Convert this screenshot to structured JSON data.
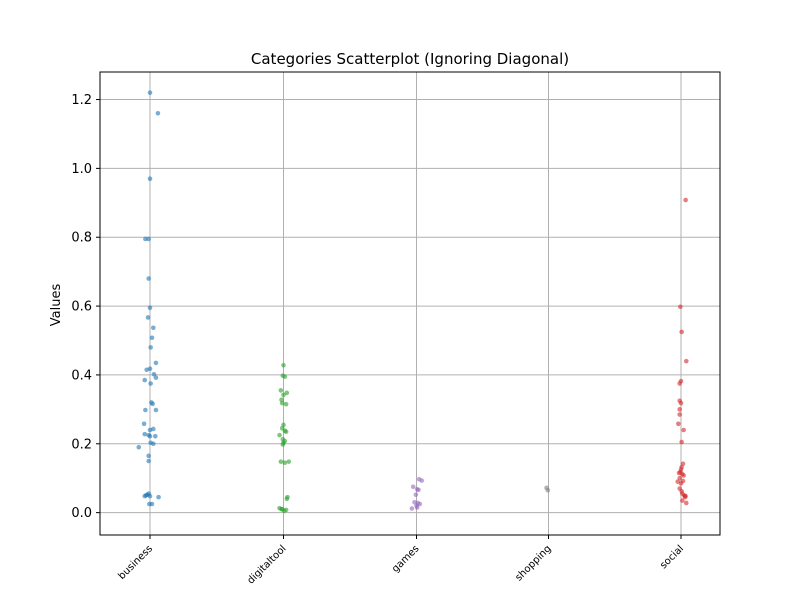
{
  "chart_data": {
    "type": "scatter",
    "title": "Categories Scatterplot (Ignoring Diagonal)",
    "xlabel": "",
    "ylabel": "Values",
    "categories": [
      "business",
      "digitaltool",
      "games",
      "shopping",
      "social"
    ],
    "y_ticks": [
      "0.0",
      "0.2",
      "0.4",
      "0.6",
      "0.8",
      "1.0",
      "1.2"
    ],
    "ylim": [
      -0.065,
      1.28
    ],
    "grid": true,
    "series": [
      {
        "color": "#1f77b4",
        "points": [
          {
            "x": 0.0,
            "y": 1.22
          },
          {
            "x": 0.12,
            "y": 1.16
          },
          {
            "x": 0.0,
            "y": 0.97
          },
          {
            "x": -0.07,
            "y": 0.795
          },
          {
            "x": -0.02,
            "y": 0.795
          },
          {
            "x": -0.02,
            "y": 0.68
          },
          {
            "x": 0.0,
            "y": 0.595
          },
          {
            "x": -0.03,
            "y": 0.567
          },
          {
            "x": 0.05,
            "y": 0.537
          },
          {
            "x": 0.03,
            "y": 0.508
          },
          {
            "x": 0.01,
            "y": 0.48
          },
          {
            "x": 0.09,
            "y": 0.435
          },
          {
            "x": -0.05,
            "y": 0.415
          },
          {
            "x": 0.0,
            "y": 0.418
          },
          {
            "x": 0.06,
            "y": 0.402
          },
          {
            "x": 0.09,
            "y": 0.392
          },
          {
            "x": -0.08,
            "y": 0.385
          },
          {
            "x": 0.01,
            "y": 0.375
          },
          {
            "x": 0.02,
            "y": 0.32
          },
          {
            "x": 0.04,
            "y": 0.316
          },
          {
            "x": -0.07,
            "y": 0.298
          },
          {
            "x": 0.09,
            "y": 0.298
          },
          {
            "x": -0.09,
            "y": 0.258
          },
          {
            "x": 0.05,
            "y": 0.243
          },
          {
            "x": 0.0,
            "y": 0.24
          },
          {
            "x": -0.08,
            "y": 0.228
          },
          {
            "x": -0.02,
            "y": 0.225
          },
          {
            "x": 0.0,
            "y": 0.222
          },
          {
            "x": 0.08,
            "y": 0.222
          },
          {
            "x": 0.01,
            "y": 0.203
          },
          {
            "x": 0.05,
            "y": 0.2
          },
          {
            "x": -0.17,
            "y": 0.19
          },
          {
            "x": -0.02,
            "y": 0.165
          },
          {
            "x": -0.02,
            "y": 0.15
          },
          {
            "x": -0.06,
            "y": 0.05
          },
          {
            "x": -0.04,
            "y": 0.052
          },
          {
            "x": -0.02,
            "y": 0.055
          },
          {
            "x": 0.0,
            "y": 0.048
          },
          {
            "x": 0.13,
            "y": 0.045
          },
          {
            "x": -0.08,
            "y": 0.048
          },
          {
            "x": -0.01,
            "y": 0.025
          },
          {
            "x": 0.03,
            "y": 0.025
          }
        ]
      },
      {
        "color": "#2ca02c",
        "points": [
          {
            "x": 0.0,
            "y": 0.428
          },
          {
            "x": -0.01,
            "y": 0.398
          },
          {
            "x": 0.02,
            "y": 0.395
          },
          {
            "x": -0.04,
            "y": 0.355
          },
          {
            "x": 0.05,
            "y": 0.348
          },
          {
            "x": 0.0,
            "y": 0.342
          },
          {
            "x": -0.03,
            "y": 0.328
          },
          {
            "x": -0.02,
            "y": 0.318
          },
          {
            "x": 0.04,
            "y": 0.315
          },
          {
            "x": -0.02,
            "y": 0.245
          },
          {
            "x": 0.0,
            "y": 0.255
          },
          {
            "x": 0.02,
            "y": 0.238
          },
          {
            "x": 0.04,
            "y": 0.235
          },
          {
            "x": -0.06,
            "y": 0.225
          },
          {
            "x": -0.01,
            "y": 0.213
          },
          {
            "x": 0.02,
            "y": 0.208
          },
          {
            "x": 0.0,
            "y": 0.203
          },
          {
            "x": -0.01,
            "y": 0.198
          },
          {
            "x": -0.04,
            "y": 0.148
          },
          {
            "x": 0.02,
            "y": 0.145
          },
          {
            "x": 0.08,
            "y": 0.148
          },
          {
            "x": 0.06,
            "y": 0.045
          },
          {
            "x": 0.05,
            "y": 0.04
          },
          {
            "x": -0.06,
            "y": 0.013
          },
          {
            "x": -0.03,
            "y": 0.01
          },
          {
            "x": 0.01,
            "y": 0.005
          },
          {
            "x": 0.04,
            "y": 0.008
          },
          {
            "x": -0.02,
            "y": 0.01
          }
        ]
      },
      {
        "color": "#9467bd",
        "points": [
          {
            "x": 0.04,
            "y": 0.097
          },
          {
            "x": 0.08,
            "y": 0.093
          },
          {
            "x": -0.05,
            "y": 0.075
          },
          {
            "x": 0.01,
            "y": 0.068
          },
          {
            "x": 0.03,
            "y": 0.066
          },
          {
            "x": -0.01,
            "y": 0.052
          },
          {
            "x": -0.03,
            "y": 0.03
          },
          {
            "x": 0.02,
            "y": 0.028
          },
          {
            "x": 0.05,
            "y": 0.025
          },
          {
            "x": 0.0,
            "y": 0.02
          },
          {
            "x": 0.01,
            "y": 0.015
          },
          {
            "x": -0.07,
            "y": 0.012
          }
        ]
      },
      {
        "color": "#7f7f7f",
        "points": [
          {
            "x": -0.03,
            "y": 0.072
          },
          {
            "x": -0.01,
            "y": 0.065
          }
        ]
      },
      {
        "color": "#d62728",
        "points": [
          {
            "x": 0.07,
            "y": 0.908
          },
          {
            "x": -0.01,
            "y": 0.598
          },
          {
            "x": 0.01,
            "y": 0.525
          },
          {
            "x": 0.08,
            "y": 0.44
          },
          {
            "x": 0.0,
            "y": 0.382
          },
          {
            "x": -0.02,
            "y": 0.375
          },
          {
            "x": -0.02,
            "y": 0.325
          },
          {
            "x": 0.0,
            "y": 0.318
          },
          {
            "x": -0.02,
            "y": 0.3
          },
          {
            "x": -0.02,
            "y": 0.285
          },
          {
            "x": -0.04,
            "y": 0.258
          },
          {
            "x": 0.04,
            "y": 0.24
          },
          {
            "x": 0.01,
            "y": 0.205
          },
          {
            "x": 0.03,
            "y": 0.142
          },
          {
            "x": 0.01,
            "y": 0.132
          },
          {
            "x": 0.0,
            "y": 0.125
          },
          {
            "x": -0.01,
            "y": 0.118
          },
          {
            "x": -0.03,
            "y": 0.115
          },
          {
            "x": 0.02,
            "y": 0.112
          },
          {
            "x": 0.04,
            "y": 0.108
          },
          {
            "x": -0.02,
            "y": 0.1
          },
          {
            "x": 0.03,
            "y": 0.092
          },
          {
            "x": -0.05,
            "y": 0.09
          },
          {
            "x": 0.0,
            "y": 0.085
          },
          {
            "x": -0.02,
            "y": 0.07
          },
          {
            "x": 0.01,
            "y": 0.062
          },
          {
            "x": 0.02,
            "y": 0.055
          },
          {
            "x": 0.05,
            "y": 0.05
          },
          {
            "x": 0.07,
            "y": 0.048
          },
          {
            "x": 0.06,
            "y": 0.045
          },
          {
            "x": 0.02,
            "y": 0.035
          },
          {
            "x": 0.08,
            "y": 0.028
          }
        ]
      }
    ]
  }
}
